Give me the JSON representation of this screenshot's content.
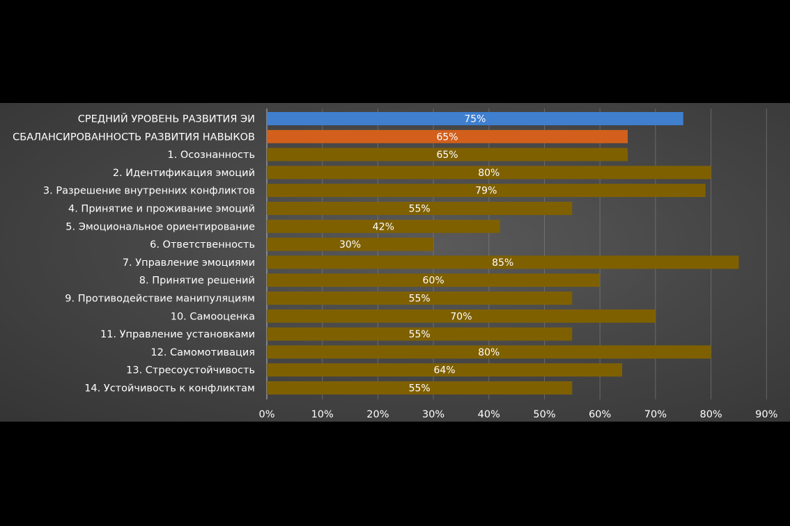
{
  "chart_data": {
    "type": "bar",
    "orientation": "horizontal",
    "title": "",
    "xlabel": "",
    "ylabel": "",
    "categories": [
      "СРЕДНИЙ УРОВЕНЬ РАЗВИТИЯ ЭИ",
      "СБАЛАНСИРОВАННОСТЬ РАЗВИТИЯ НАВЫКОВ",
      "1. Осознанность",
      "2. Идентификация эмоций",
      "3. Разрешение внутренних конфликтов",
      "4. Принятие и проживание эмоций",
      "5. Эмоциональное ориентирование",
      "6. Ответственность",
      "7. Управление эмоциями",
      "8. Принятие решений",
      "9. Противодействие манипуляциям",
      "10. Самооценка",
      "11. Управление установками",
      "12. Самомотивация",
      "13. Стресоустойчивость",
      "14. Устойчивость к конфликтам"
    ],
    "values": [
      75,
      65,
      65,
      80,
      79,
      55,
      42,
      30,
      85,
      60,
      55,
      70,
      55,
      80,
      64,
      55
    ],
    "data_labels": [
      "75%",
      "65%",
      "65%",
      "80%",
      "79%",
      "55%",
      "42%",
      "30%",
      "85%",
      "60%",
      "55%",
      "70%",
      "55%",
      "80%",
      "64%",
      "55%"
    ],
    "bar_colors": [
      "#3f7fce",
      "#d2601c",
      "#7f6000",
      "#7f6000",
      "#7f6000",
      "#7f6000",
      "#7f6000",
      "#7f6000",
      "#7f6000",
      "#7f6000",
      "#7f6000",
      "#7f6000",
      "#7f6000",
      "#7f6000",
      "#7f6000",
      "#7f6000"
    ],
    "xlim": [
      0,
      90
    ],
    "xticks": [
      0,
      10,
      20,
      30,
      40,
      50,
      60,
      70,
      80,
      90
    ],
    "xtick_labels": [
      "0%",
      "10%",
      "20%",
      "30%",
      "40%",
      "50%",
      "60%",
      "70%",
      "80%",
      "90%"
    ],
    "grid": "vertical",
    "legend": "none"
  }
}
